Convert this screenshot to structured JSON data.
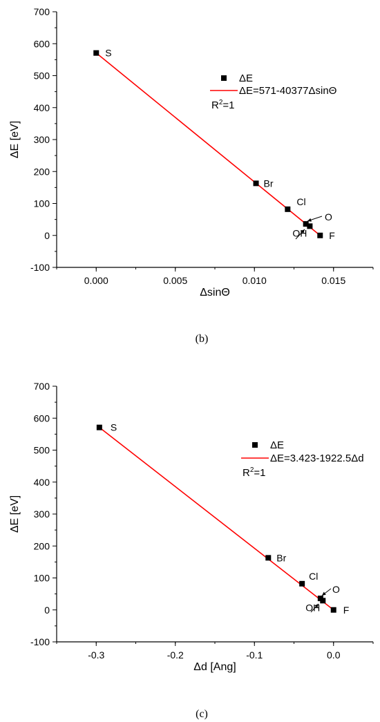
{
  "chart_data": [
    {
      "type": "scatter",
      "caption": "(b)",
      "xlabel": "ΔsinΘ",
      "ylabel": "ΔE [eV]",
      "xlim": [
        -0.0025,
        0.0175
      ],
      "ylim": [
        -100,
        700
      ],
      "xticks": [
        0.0,
        0.005,
        0.01,
        0.015
      ],
      "xtick_labels": [
        "0.000",
        "0.005",
        "0.010",
        "0.015"
      ],
      "yticks": [
        -100,
        0,
        100,
        200,
        300,
        400,
        500,
        600,
        700
      ],
      "ytick_labels": [
        "-100",
        "0",
        "100",
        "200",
        "300",
        "400",
        "500",
        "600",
        "700"
      ],
      "series": [
        {
          "name": "ΔE",
          "points": [
            {
              "label": "S",
              "x": 0.0,
              "y": 571
            },
            {
              "label": "Br",
              "x": 0.0101,
              "y": 163
            },
            {
              "label": "Cl",
              "x": 0.0121,
              "y": 82
            },
            {
              "label": "O",
              "x": 0.01325,
              "y": 36
            },
            {
              "label": "OH",
              "x": 0.0135,
              "y": 29
            },
            {
              "label": "F",
              "x": 0.01415,
              "y": 0
            }
          ]
        },
        {
          "name": "ΔE=571-40377ΔsinΘ",
          "fit": {
            "x": [
              0.0,
              0.01415
            ],
            "y": [
              571,
              0
            ]
          }
        }
      ],
      "annotation": "R2=1",
      "legend_position": "top-right",
      "colors": {
        "points": "#000000",
        "fit": "#ff0000"
      }
    },
    {
      "type": "scatter",
      "caption": "(c)",
      "xlabel": "Δd [Ang]",
      "ylabel": "ΔE [eV]",
      "xlim": [
        -0.35,
        0.05
      ],
      "ylim": [
        -100,
        700
      ],
      "xticks": [
        -0.3,
        -0.2,
        -0.1,
        0.0
      ],
      "xtick_labels": [
        "-0.3",
        "-0.2",
        "-0.1",
        "0.0"
      ],
      "yticks": [
        -100,
        0,
        100,
        200,
        300,
        400,
        500,
        600,
        700
      ],
      "ytick_labels": [
        "-100",
        "0",
        "100",
        "200",
        "300",
        "400",
        "500",
        "600",
        "700"
      ],
      "series": [
        {
          "name": "ΔE",
          "points": [
            {
              "label": "S",
              "x": -0.296,
              "y": 571
            },
            {
              "label": "Br",
              "x": -0.0825,
              "y": 163
            },
            {
              "label": "Cl",
              "x": -0.0398,
              "y": 82
            },
            {
              "label": "O",
              "x": -0.0165,
              "y": 36
            },
            {
              "label": "OH",
              "x": -0.0135,
              "y": 29
            },
            {
              "label": "F",
              "x": 0.0,
              "y": 0
            }
          ]
        },
        {
          "name": "ΔE=3.423-1922.5Δd",
          "fit": {
            "x": [
              -0.296,
              0.0
            ],
            "y": [
              571,
              0
            ]
          }
        }
      ],
      "annotation": "R2=1",
      "legend_position": "top-right",
      "colors": {
        "points": "#000000",
        "fit": "#ff0000"
      }
    }
  ]
}
